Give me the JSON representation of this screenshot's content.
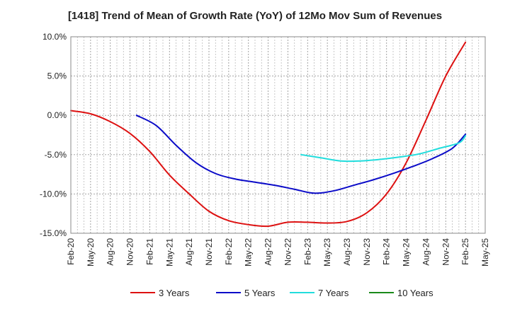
{
  "chart_data": {
    "type": "line",
    "title": "[1418]  Trend of Mean of Growth Rate (YoY) of 12Mo Mov Sum of Revenues",
    "xlabel": "",
    "ylabel": "",
    "ylim": [
      -15,
      10
    ],
    "yticks": [
      10,
      5,
      0,
      -5,
      -10,
      -15
    ],
    "ytick_labels": [
      "10.0%",
      "5.0%",
      "0.0%",
      "-5.0%",
      "-10.0%",
      "-15.0%"
    ],
    "x_categories": [
      "Feb-20",
      "May-20",
      "Aug-20",
      "Nov-20",
      "Feb-21",
      "May-21",
      "Aug-21",
      "Nov-21",
      "Feb-22",
      "May-22",
      "Aug-22",
      "Nov-22",
      "Feb-23",
      "May-23",
      "Aug-23",
      "Nov-23",
      "Feb-24",
      "May-24",
      "Aug-24",
      "Nov-24",
      "Feb-25",
      "May-25"
    ],
    "grid": true,
    "legend_position": "bottom",
    "series": [
      {
        "name": "3 Years",
        "color": "#dd1111",
        "points": [
          [
            0,
            0.6
          ],
          [
            1,
            0.2
          ],
          [
            2,
            -0.8
          ],
          [
            3,
            -2.3
          ],
          [
            4,
            -4.6
          ],
          [
            5,
            -7.6
          ],
          [
            6,
            -10.0
          ],
          [
            7,
            -12.2
          ],
          [
            8,
            -13.4
          ],
          [
            9,
            -13.9
          ],
          [
            10,
            -14.1
          ],
          [
            11,
            -13.6
          ],
          [
            12,
            -13.6
          ],
          [
            13,
            -13.7
          ],
          [
            14,
            -13.5
          ],
          [
            15,
            -12.4
          ],
          [
            16,
            -10.0
          ],
          [
            17,
            -6.0
          ],
          [
            18,
            -0.6
          ],
          [
            19,
            5.0
          ],
          [
            20,
            9.3
          ]
        ]
      },
      {
        "name": "5 Years",
        "color": "#0b0bc8",
        "points": [
          [
            3.33,
            0.0
          ],
          [
            4.33,
            -1.3
          ],
          [
            5.33,
            -3.8
          ],
          [
            6.33,
            -6.0
          ],
          [
            7.33,
            -7.4
          ],
          [
            8.33,
            -8.1
          ],
          [
            9.33,
            -8.5
          ],
          [
            10.33,
            -8.9
          ],
          [
            11.33,
            -9.4
          ],
          [
            12.33,
            -9.9
          ],
          [
            13.33,
            -9.6
          ],
          [
            14.33,
            -8.9
          ],
          [
            15.33,
            -8.2
          ],
          [
            16.33,
            -7.4
          ],
          [
            17.33,
            -6.5
          ],
          [
            18.33,
            -5.5
          ],
          [
            19.33,
            -4.2
          ],
          [
            20,
            -2.4
          ]
        ]
      },
      {
        "name": "7 Years",
        "color": "#22dddd",
        "points": [
          [
            11.67,
            -5.0
          ],
          [
            12.67,
            -5.4
          ],
          [
            13.67,
            -5.8
          ],
          [
            14.67,
            -5.8
          ],
          [
            15.67,
            -5.6
          ],
          [
            16.67,
            -5.3
          ],
          [
            17.67,
            -4.9
          ],
          [
            18.67,
            -4.2
          ],
          [
            19.67,
            -3.5
          ],
          [
            20,
            -2.6
          ]
        ]
      },
      {
        "name": "10 Years",
        "color": "#1a8a1a",
        "points": []
      }
    ]
  }
}
